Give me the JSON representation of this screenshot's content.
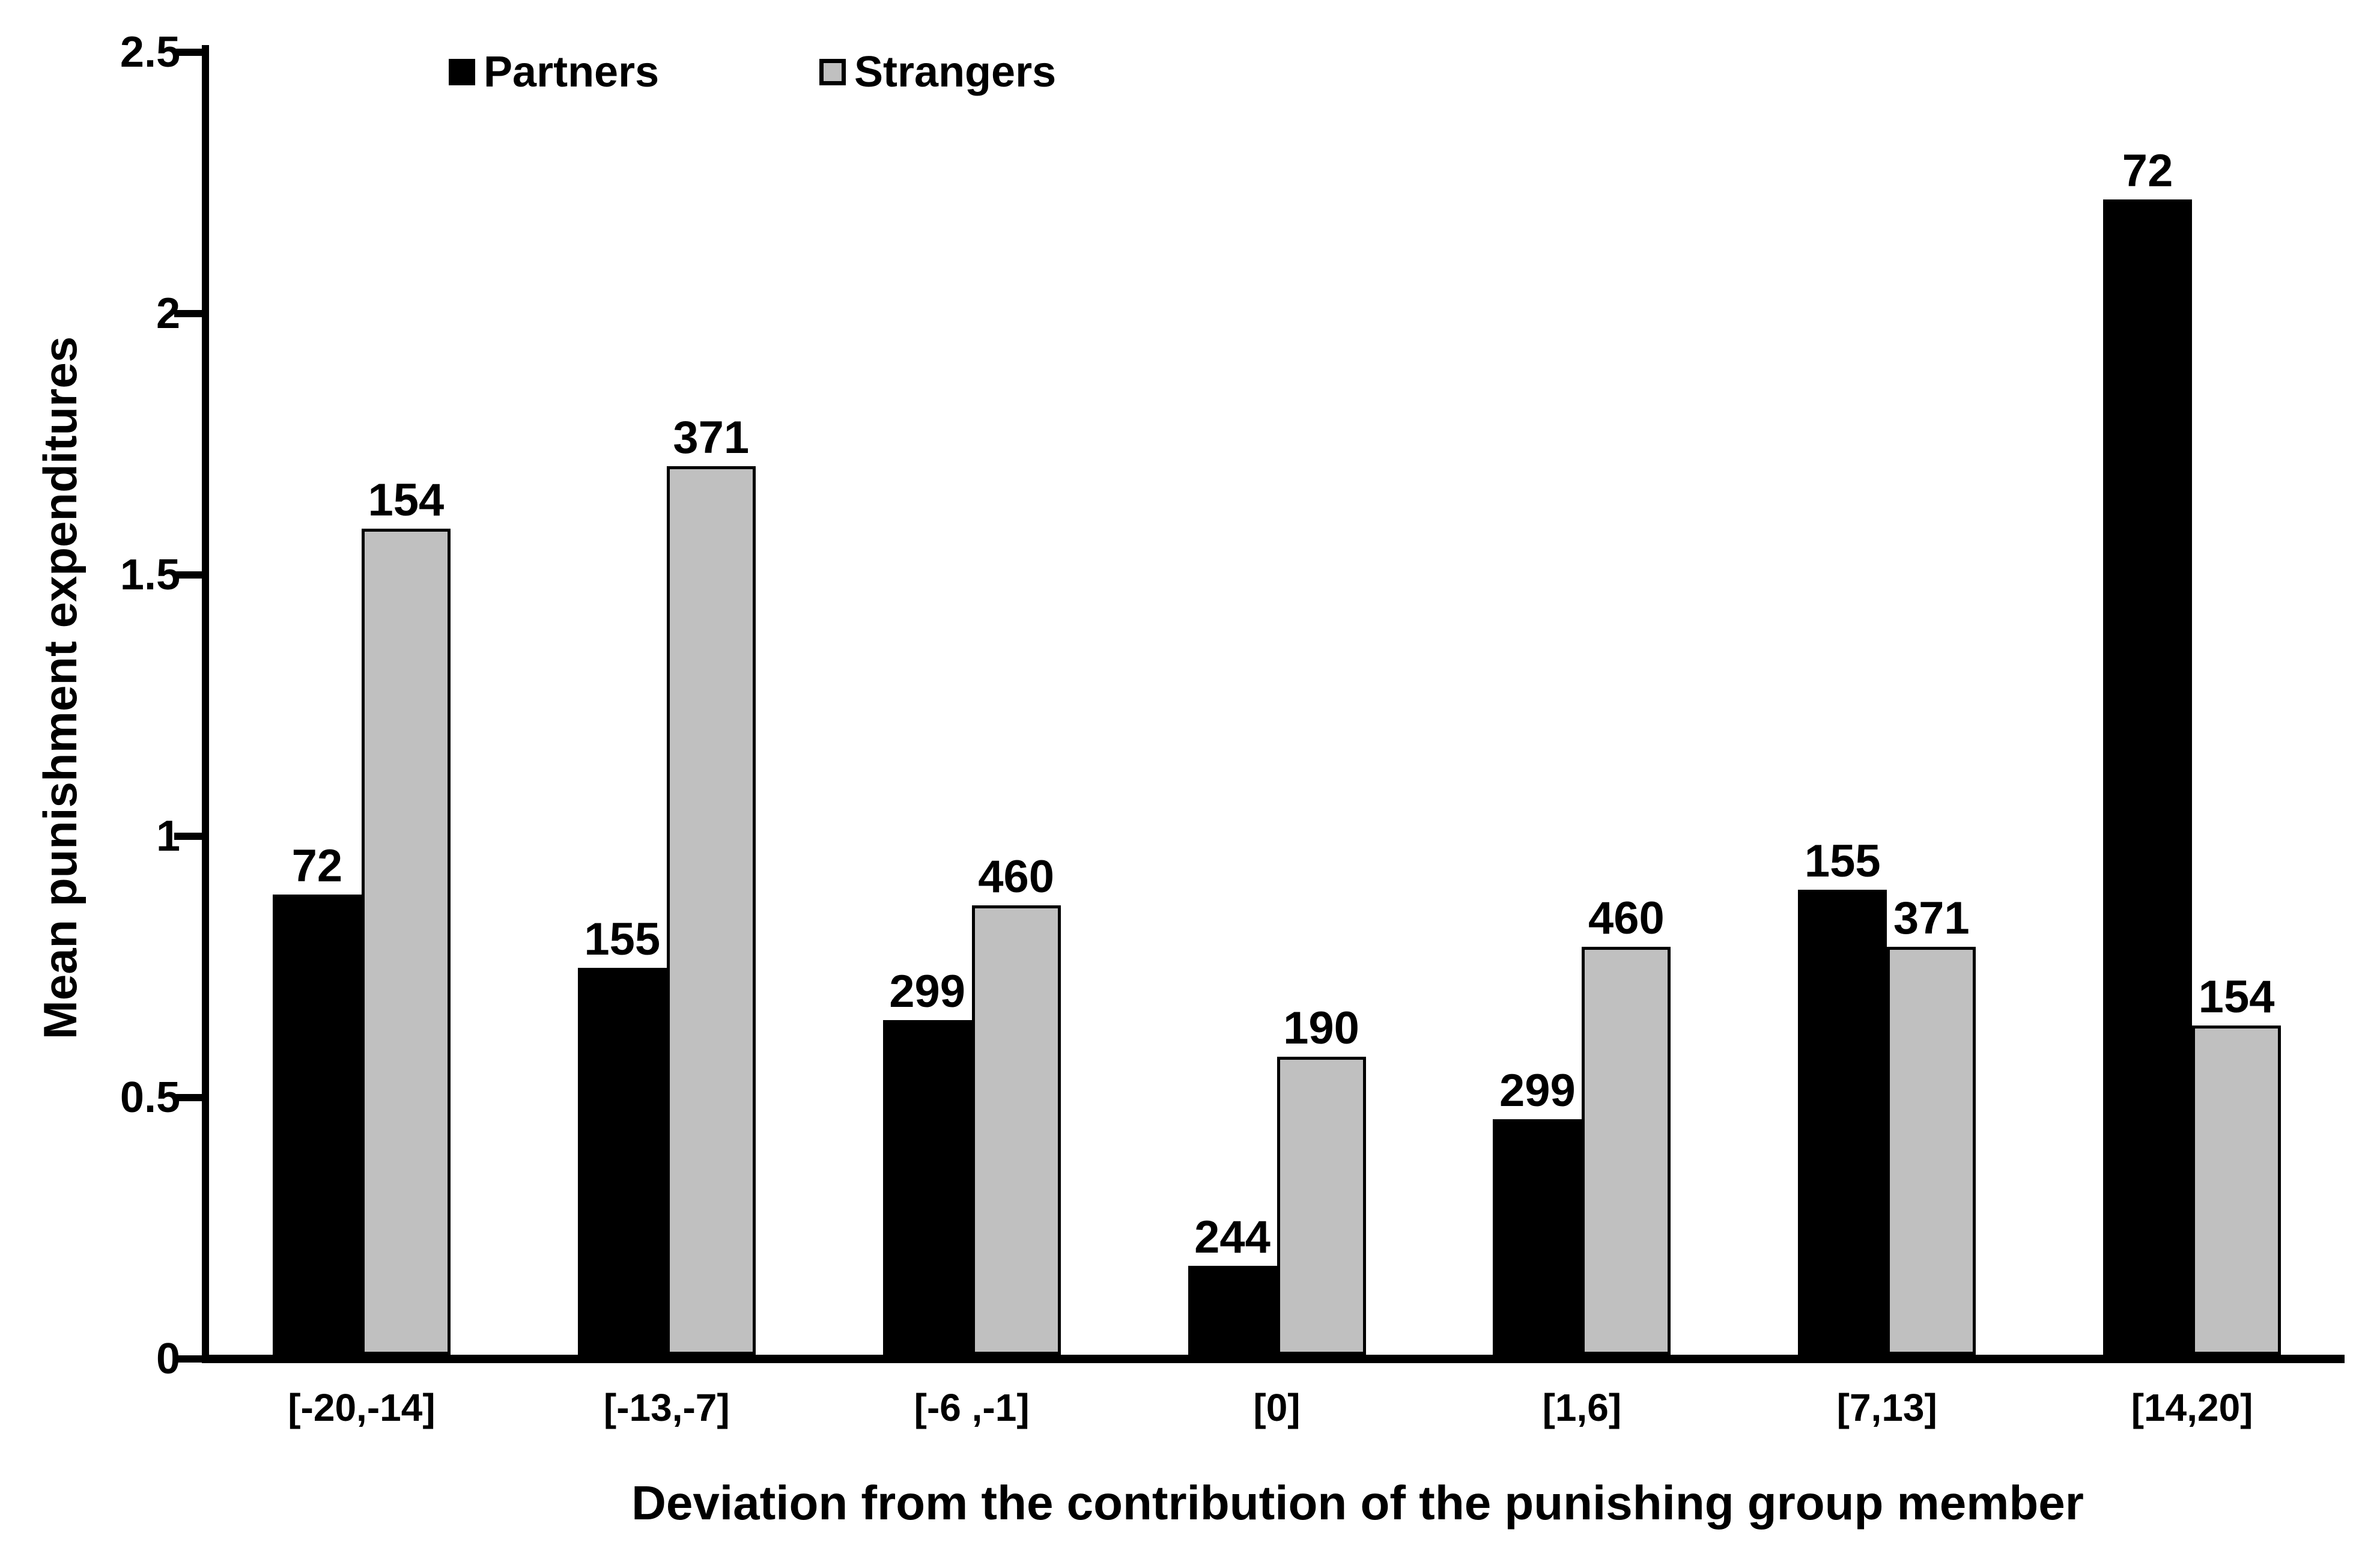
{
  "chart_data": {
    "type": "bar",
    "title": "",
    "xlabel": "Deviation from the contribution of the punishing group member",
    "ylabel": "Mean punishment expenditures",
    "ylim": [
      0,
      2.5
    ],
    "yticks": [
      {
        "value": 0,
        "label": "0"
      },
      {
        "value": 0.5,
        "label": "0.5"
      },
      {
        "value": 1,
        "label": "1"
      },
      {
        "value": 1.5,
        "label": "1.5"
      },
      {
        "value": 2,
        "label": "2"
      },
      {
        "value": 2.5,
        "label": "2.5"
      }
    ],
    "categories": [
      "[-20,-14]",
      "[-13,-7]",
      "[-6 ,-1]",
      "[0]",
      "[1,6]",
      "[7,13]",
      "[14,20]"
    ],
    "series": [
      {
        "name": "Partners",
        "color": "#000000",
        "values": [
          0.88,
          0.74,
          0.64,
          0.17,
          0.45,
          0.89,
          2.21
        ],
        "bar_labels": [
          "72",
          "155",
          "299",
          "244",
          "299",
          "155",
          "72"
        ]
      },
      {
        "name": "Strangers",
        "color": "#c0c0c0",
        "values": [
          1.58,
          1.7,
          0.86,
          0.57,
          0.78,
          0.78,
          0.63
        ],
        "bar_labels": [
          "154",
          "371",
          "460",
          "190",
          "460",
          "371",
          "154"
        ]
      }
    ],
    "legend_position": "top",
    "grid": false,
    "background_color": "#ffffff",
    "bar_border_color": "#000000"
  }
}
